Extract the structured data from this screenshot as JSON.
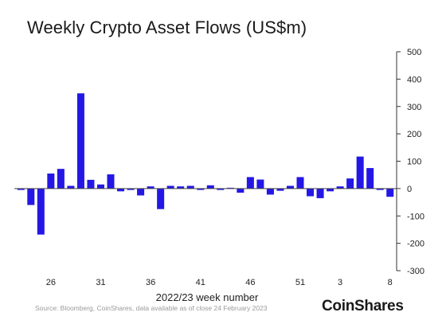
{
  "chart_data": {
    "type": "bar",
    "title": "Weekly Crypto Asset Flows (US$m)",
    "xlabel": "2022/23 week number",
    "ylabel": "",
    "ylim": [
      -300,
      500
    ],
    "yticks": [
      500,
      400,
      300,
      200,
      100,
      0,
      -100,
      -200,
      -300
    ],
    "y_axis_side": "right",
    "grid": false,
    "bar_color": "#2417e6",
    "x_tick_labels": [
      {
        "label": "26",
        "category": 26
      },
      {
        "label": "31",
        "category": 31
      },
      {
        "label": "36",
        "category": 36
      },
      {
        "label": "41",
        "category": 41
      },
      {
        "label": "46",
        "category": 46
      },
      {
        "label": "51",
        "category": 51
      },
      {
        "label": "3",
        "category": 55
      },
      {
        "label": "8",
        "category": 60
      }
    ],
    "categories": [
      23,
      24,
      25,
      26,
      27,
      28,
      29,
      30,
      31,
      32,
      33,
      34,
      35,
      36,
      37,
      38,
      39,
      40,
      41,
      42,
      43,
      44,
      45,
      46,
      47,
      48,
      49,
      50,
      51,
      52,
      53,
      54,
      55,
      56,
      57,
      58,
      59,
      60
    ],
    "values": [
      -5,
      -60,
      -168,
      55,
      72,
      10,
      348,
      32,
      15,
      52,
      -10,
      -5,
      -25,
      8,
      -75,
      10,
      8,
      10,
      -5,
      12,
      -5,
      3,
      -15,
      42,
      33,
      -22,
      -8,
      10,
      42,
      -28,
      -35,
      -10,
      8,
      37,
      117,
      75,
      -5,
      -30
    ]
  },
  "source": "Source: Bloomberg, CoinShares, data available as of close 24 February 2023",
  "brand": "CoinShares"
}
